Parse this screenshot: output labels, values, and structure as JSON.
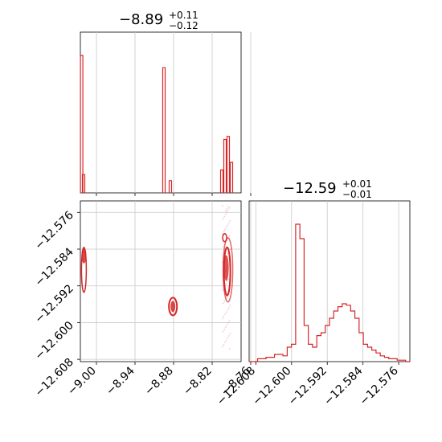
{
  "chart_data": [
    {
      "type": "histogram",
      "panel": "top-left",
      "title": {
        "main": "−8.89",
        "sup": "+0.11",
        "sub": "−0.12"
      },
      "xlim": [
        -9.025,
        -8.775
      ],
      "xticks": [
        -9.0,
        -8.94,
        -8.88,
        -8.82,
        -8.76
      ],
      "grid": true,
      "color": "#d62728",
      "bins": [
        {
          "x": -9.023,
          "h": 0.9
        },
        {
          "x": -9.02,
          "h": 0.12
        },
        {
          "x": -8.895,
          "h": 0.82
        },
        {
          "x": -8.885,
          "h": 0.08
        },
        {
          "x": -8.805,
          "h": 0.15
        },
        {
          "x": -8.8,
          "h": 0.35
        },
        {
          "x": -8.795,
          "h": 0.37
        },
        {
          "x": -8.79,
          "h": 0.2
        }
      ]
    },
    {
      "type": "scatter",
      "panel": "bottom-left",
      "xlim": [
        -9.025,
        -8.775
      ],
      "ylim": [
        -12.6085,
        -12.5735
      ],
      "xticks": [
        -9.0,
        -8.94,
        -8.88,
        -8.82,
        -8.76
      ],
      "yticks": [
        -12.576,
        -12.584,
        -12.592,
        -12.6,
        -12.608
      ],
      "xtick_labels": [
        "−9.00",
        "−8.94",
        "−8.88",
        "−8.82",
        "−8.76"
      ],
      "ytick_labels": [
        "−12.576",
        "−12.584",
        "−12.592",
        "−12.600",
        "−12.608"
      ],
      "grid": true,
      "color": "#d62728",
      "clusters": [
        {
          "x": -9.022,
          "y": -12.585,
          "note": "left edge cluster"
        },
        {
          "x": -8.881,
          "y": -12.5965,
          "note": "middle cluster"
        },
        {
          "x": -8.798,
          "y": -12.5885,
          "note": "right vertical cluster"
        }
      ]
    },
    {
      "type": "histogram",
      "panel": "bottom-right",
      "title": {
        "main": "−12.59",
        "sup": "+0.01",
        "sub": "−0.01"
      },
      "xlim": [
        -12.6095,
        -12.5735
      ],
      "xticks": [
        -12.608,
        -12.6,
        -12.592,
        -12.584,
        -12.576
      ],
      "xtick_labels": [
        "−12.608",
        "−12.600",
        "−12.592",
        "−12.584",
        "−12.576"
      ],
      "grid": true,
      "color": "#d62728",
      "values": [
        0.0,
        0.0,
        0.02,
        0.02,
        0.03,
        0.03,
        0.05,
        0.05,
        0.04,
        0.1,
        0.12,
        0.95,
        0.85,
        0.25,
        0.12,
        0.1,
        0.18,
        0.2,
        0.25,
        0.3,
        0.35,
        0.38,
        0.4,
        0.39,
        0.35,
        0.3,
        0.2,
        0.12,
        0.1,
        0.08,
        0.06,
        0.04,
        0.03,
        0.02,
        0.02,
        0.01,
        0.01,
        0.0
      ]
    }
  ]
}
